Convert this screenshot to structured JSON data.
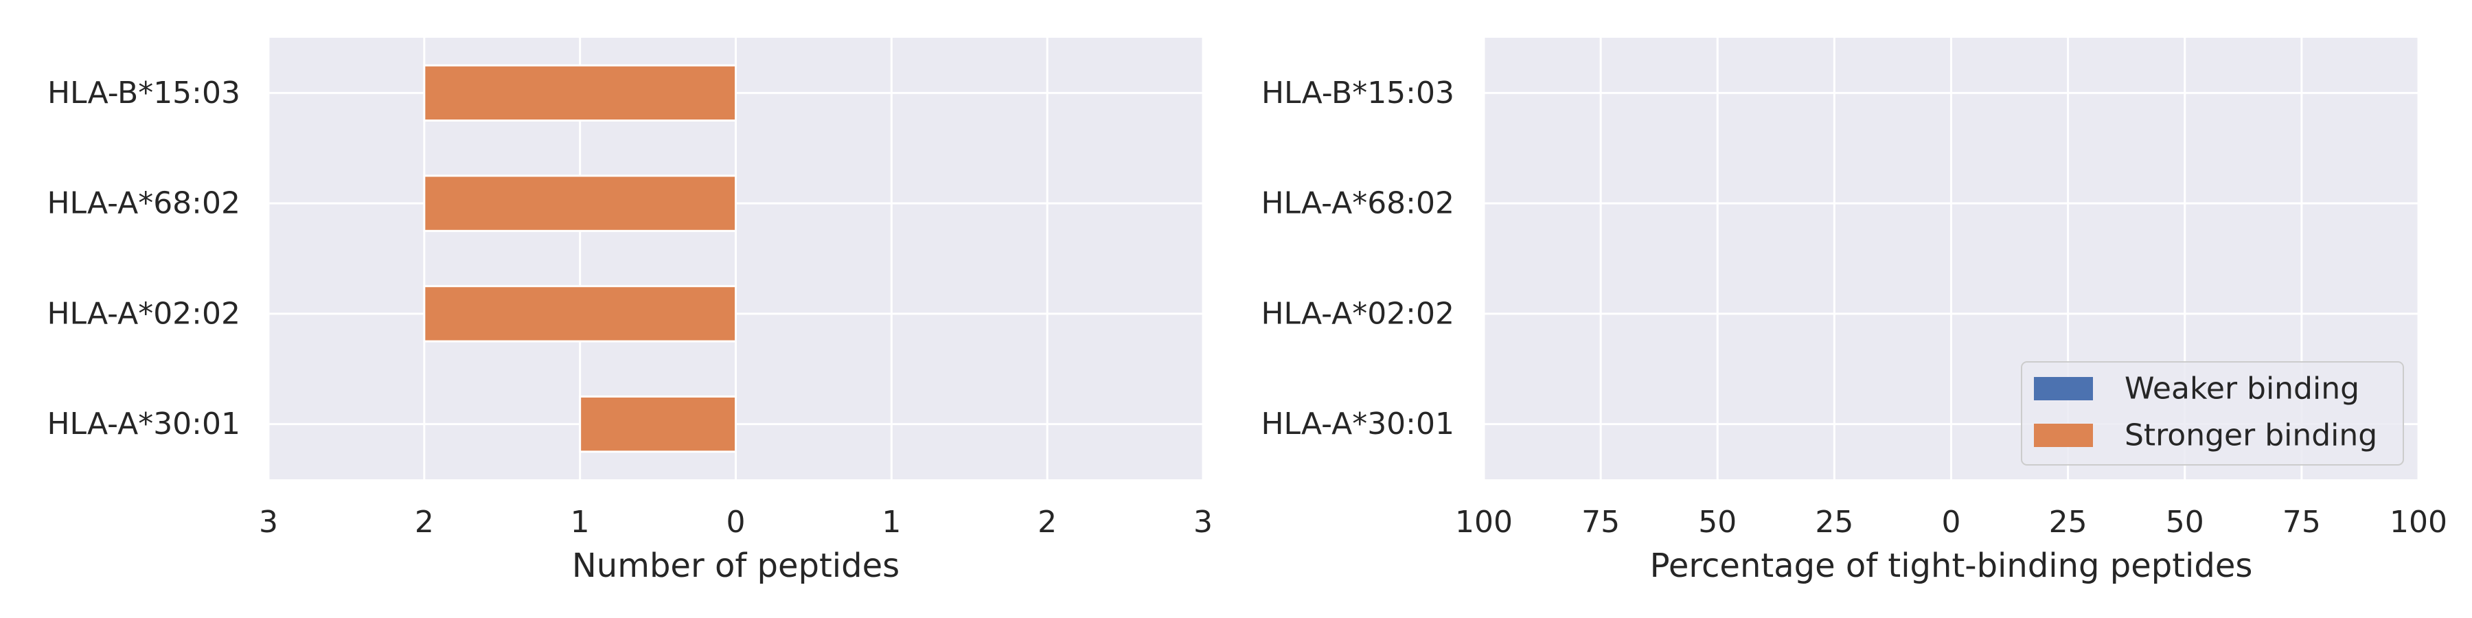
{
  "chart_data": [
    {
      "type": "bar",
      "orientation": "horizontal",
      "layout": "butterfly",
      "categories": [
        "HLA-B*15:03",
        "HLA-A*68:02",
        "HLA-A*02:02",
        "HLA-A*30:01"
      ],
      "series": [
        {
          "name": "Weaker binding",
          "side": "right",
          "values": [
            0,
            0,
            0,
            0
          ],
          "color": "#4c72b0"
        },
        {
          "name": "Stronger binding",
          "side": "left",
          "values": [
            2,
            2,
            2,
            1
          ],
          "color": "#dd8452"
        }
      ],
      "xlim": [
        -3,
        3
      ],
      "xticks": [
        -3,
        -2,
        -1,
        0,
        1,
        2,
        3
      ],
      "xtick_labels": [
        "3",
        "2",
        "1",
        "0",
        "1",
        "2",
        "3"
      ],
      "xlabel": "Number of peptides",
      "ylabel": "",
      "grid": true
    },
    {
      "type": "bar",
      "orientation": "horizontal",
      "layout": "butterfly",
      "categories": [
        "HLA-B*15:03",
        "HLA-A*68:02",
        "HLA-A*02:02",
        "HLA-A*30:01"
      ],
      "series": [
        {
          "name": "Weaker binding",
          "side": "right",
          "values": [
            0,
            0,
            0,
            0
          ],
          "color": "#4c72b0"
        },
        {
          "name": "Stronger binding",
          "side": "left",
          "values": [
            0,
            0,
            0,
            0
          ],
          "color": "#dd8452"
        }
      ],
      "xlim": [
        -100,
        100
      ],
      "xticks": [
        -100,
        -75,
        -50,
        -25,
        0,
        25,
        50,
        75,
        100
      ],
      "xtick_labels": [
        "100",
        "75",
        "50",
        "25",
        "0",
        "25",
        "50",
        "75",
        "100"
      ],
      "xlabel": "Percentage of tight-binding peptides",
      "ylabel": "",
      "grid": true,
      "legend": {
        "position": "lower right",
        "entries": [
          {
            "label": "Weaker binding",
            "color": "#4c72b0"
          },
          {
            "label": "Stronger binding",
            "color": "#dd8452"
          }
        ]
      }
    }
  ]
}
